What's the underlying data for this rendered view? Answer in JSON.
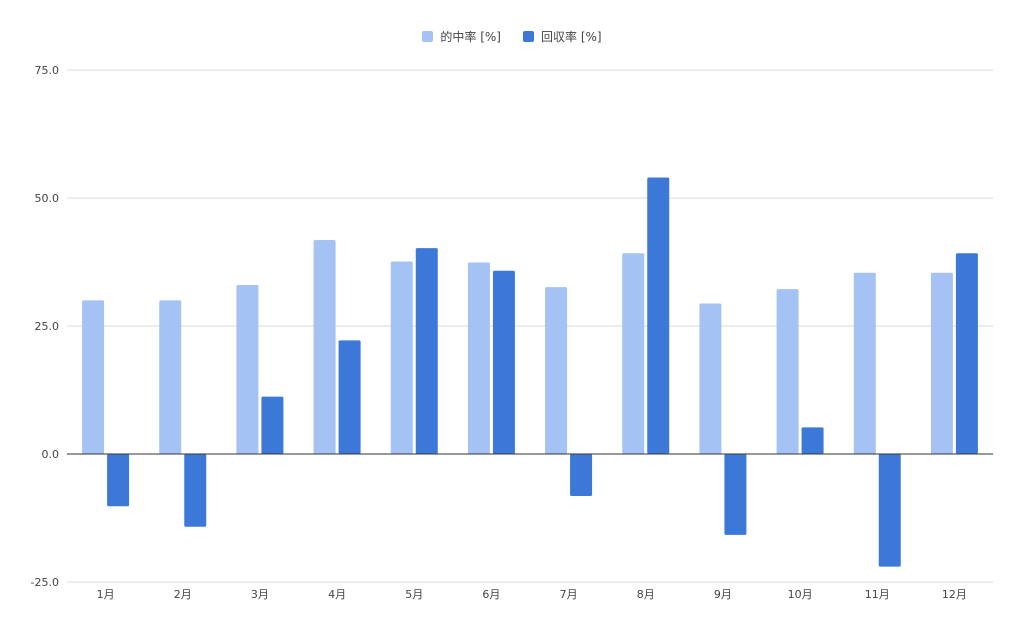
{
  "chart_data": {
    "type": "bar",
    "categories": [
      "1月",
      "2月",
      "3月",
      "4月",
      "5月",
      "6月",
      "7月",
      "8月",
      "9月",
      "10月",
      "11月",
      "12月"
    ],
    "series": [
      {
        "name": "的中率 [%]",
        "color": "#a4c2f4",
        "values": [
          30.0,
          30.0,
          33.0,
          41.8,
          37.6,
          37.4,
          32.6,
          39.2,
          29.4,
          32.2,
          35.4,
          35.4
        ]
      },
      {
        "name": "回収率 [%]",
        "color": "#3c78d8",
        "values": [
          -10.2,
          -14.2,
          11.2,
          22.2,
          40.2,
          35.8,
          -8.2,
          54.0,
          -15.8,
          5.2,
          -22.0,
          39.2
        ]
      }
    ],
    "ylim": [
      -25,
      75
    ],
    "yticks": [
      "-25.0",
      "0.0",
      "25.0",
      "50.0",
      "75.0"
    ],
    "grid": true,
    "legend_position": "top-center"
  }
}
